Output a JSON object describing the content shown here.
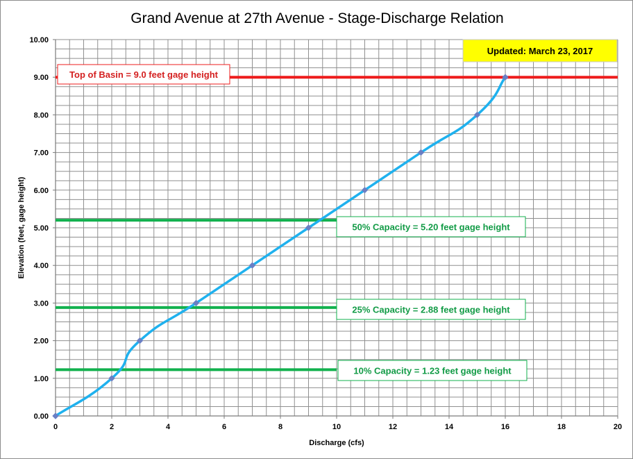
{
  "chart_data": {
    "type": "line",
    "title": "Grand Avenue at 27th Avenue - Stage-Discharge Relation",
    "xlabel": "Discharge  (cfs)",
    "ylabel": "Elevation  (feet, gage height)",
    "xlim": [
      0,
      20
    ],
    "ylim": [
      0,
      10
    ],
    "x_ticks": [
      "0",
      "2",
      "4",
      "6",
      "8",
      "10",
      "12",
      "14",
      "16",
      "18",
      "20"
    ],
    "y_ticks": [
      "0.00",
      "1.00",
      "2.00",
      "3.00",
      "4.00",
      "5.00",
      "6.00",
      "7.00",
      "8.00",
      "9.00",
      "10.00"
    ],
    "grid": true,
    "series": [
      {
        "color": "#1fb1ee",
        "marker_color": "#6a7fc4",
        "points": [
          {
            "x": 0,
            "y": 0
          },
          {
            "x": 2,
            "y": 1
          },
          {
            "x": 3,
            "y": 2
          },
          {
            "x": 5,
            "y": 3
          },
          {
            "x": 7,
            "y": 4
          },
          {
            "x": 9,
            "y": 5
          },
          {
            "x": 11,
            "y": 6
          },
          {
            "x": 13,
            "y": 7
          },
          {
            "x": 15,
            "y": 8
          },
          {
            "x": 16,
            "y": 9
          }
        ]
      }
    ],
    "reference_lines": [
      {
        "y": 9.0,
        "x_end": 20,
        "color": "#ee1c1c",
        "label": "Top of Basin = 9.0 feet gage height",
        "label_color": "#d42020"
      },
      {
        "y": 5.2,
        "x_end": 10,
        "color": "#12b14e",
        "label": "50% Capacity = 5.20 feet gage height",
        "label_color": "#129b46"
      },
      {
        "y": 2.88,
        "x_end": 10,
        "color": "#12b14e",
        "label": "25% Capacity = 2.88 feet gage height",
        "label_color": "#129b46"
      },
      {
        "y": 1.23,
        "x_end": 10,
        "color": "#12b14e",
        "label": "10% Capacity = 1.23 feet gage height",
        "label_color": "#129b46"
      }
    ],
    "update_note": {
      "text": "Updated: March 23, 2017",
      "background": "#ffff00"
    }
  }
}
